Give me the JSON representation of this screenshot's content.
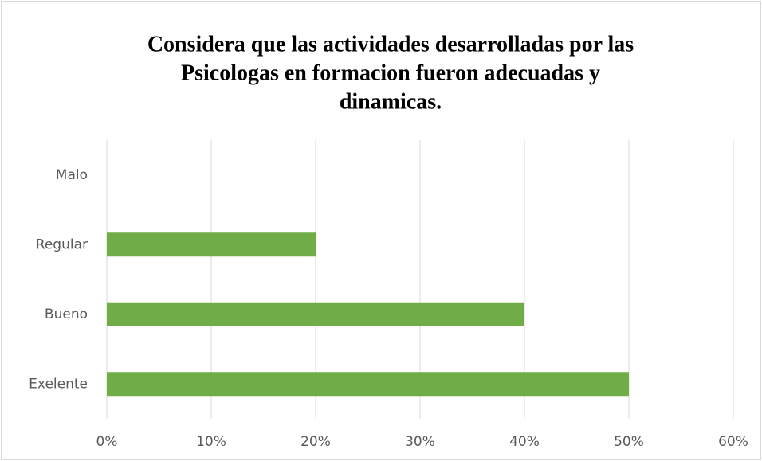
{
  "chart_data": {
    "type": "barh",
    "title": [
      "Considera que las actividades desarrolladas por las",
      "Psicologas en formacion fueron adecuadas y",
      "dinamicas."
    ],
    "categories": [
      "Malo",
      "Regular",
      "Bueno",
      "Exelente"
    ],
    "values": [
      0,
      20,
      40,
      50
    ],
    "color": "#70ad47",
    "xlim": [
      0,
      60
    ],
    "xticks": [
      {
        "value": 0,
        "label": "0%"
      },
      {
        "value": 10,
        "label": "10%"
      },
      {
        "value": 20,
        "label": "20%"
      },
      {
        "value": 30,
        "label": "30%"
      },
      {
        "value": 40,
        "label": "40%"
      },
      {
        "value": 50,
        "label": "50%"
      },
      {
        "value": 60,
        "label": "60%"
      }
    ],
    "grid": true
  }
}
